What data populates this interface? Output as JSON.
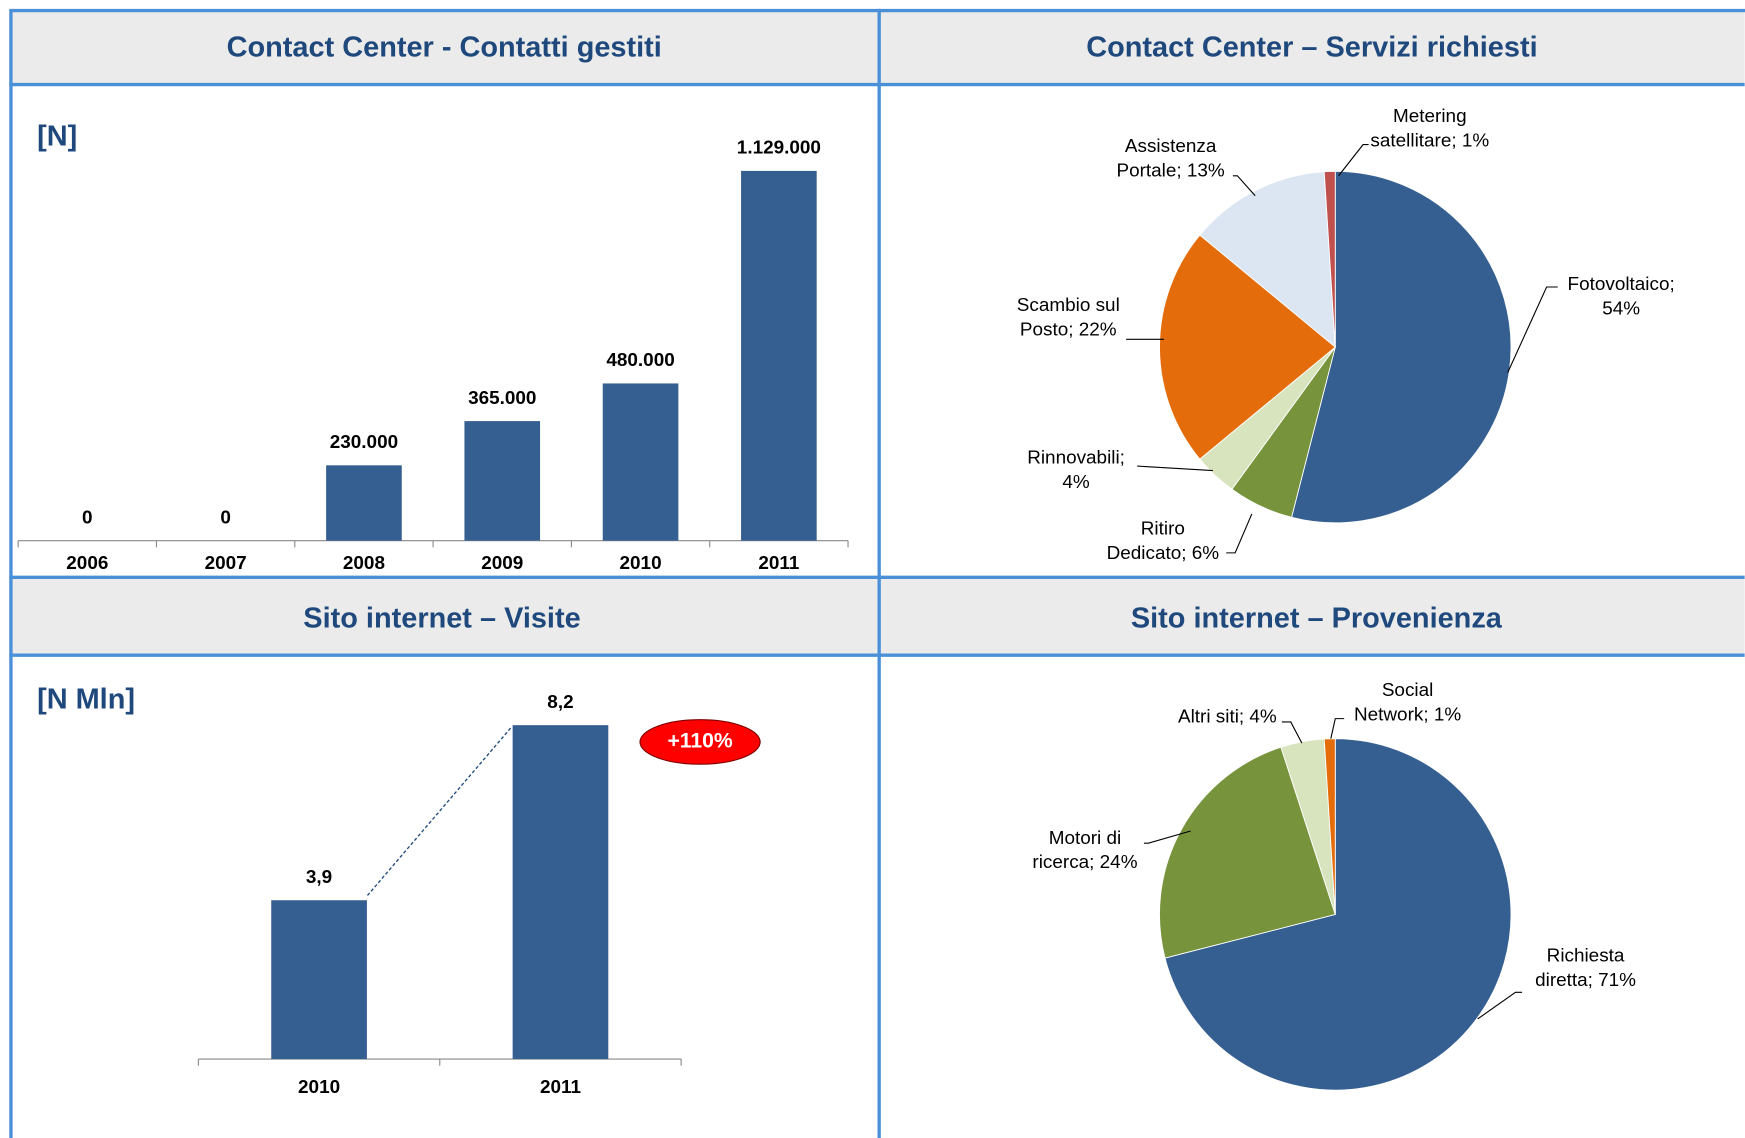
{
  "chart_data": [
    {
      "type": "bar",
      "title": "Contact Center - Contatti gestiti",
      "subtitle": "[N]",
      "categories": [
        "2006",
        "2007",
        "2008",
        "2009",
        "2010",
        "2011"
      ],
      "values": [
        0,
        0,
        230000,
        365000,
        480000,
        1129000
      ],
      "value_labels": [
        "0",
        "0",
        "230.000",
        "365.000",
        "480.000",
        "1.129.000"
      ],
      "color": "#365f91",
      "ylim": [
        0,
        1250000
      ]
    },
    {
      "type": "pie",
      "title": "Contact Center – Servizi richiesti",
      "labels": [
        [
          "Fotovoltaico;",
          "54%"
        ],
        [
          "Ritiro",
          "Dedicato; 6%"
        ],
        [
          "Rinnovabili;",
          "4%"
        ],
        [
          "Scambio sul",
          "Posto; 22%"
        ],
        [
          "Assistenza",
          "Portale; 13%"
        ],
        [
          "Metering",
          "satellitare; 1%"
        ]
      ],
      "values": [
        54,
        6,
        4,
        22,
        13,
        1
      ],
      "colors": [
        "#365f91",
        "#77933c",
        "#d7e4bd",
        "#e46c0a",
        "#dce6f2",
        "#c0504d"
      ]
    },
    {
      "type": "bar",
      "title": "Sito internet – Visite",
      "subtitle": "[N Mln]",
      "categories": [
        "2010",
        "2011"
      ],
      "values": [
        3.9,
        8.2
      ],
      "value_labels": [
        "3,9",
        "8,2"
      ],
      "color": "#365f91",
      "ylim": [
        0,
        10
      ],
      "annotation": "+110%"
    },
    {
      "type": "pie",
      "title": "Sito internet – Provenienza",
      "labels": [
        [
          "Richiesta",
          "diretta; 71%"
        ],
        [
          "Motori di",
          "ricerca; 24%"
        ],
        [
          "Altri siti; 4%"
        ],
        [
          "Social",
          "Network; 1%"
        ]
      ],
      "values": [
        71,
        24,
        4,
        1
      ],
      "colors": [
        "#365f91",
        "#77933c",
        "#d7e4bd",
        "#e46c0a"
      ]
    }
  ]
}
